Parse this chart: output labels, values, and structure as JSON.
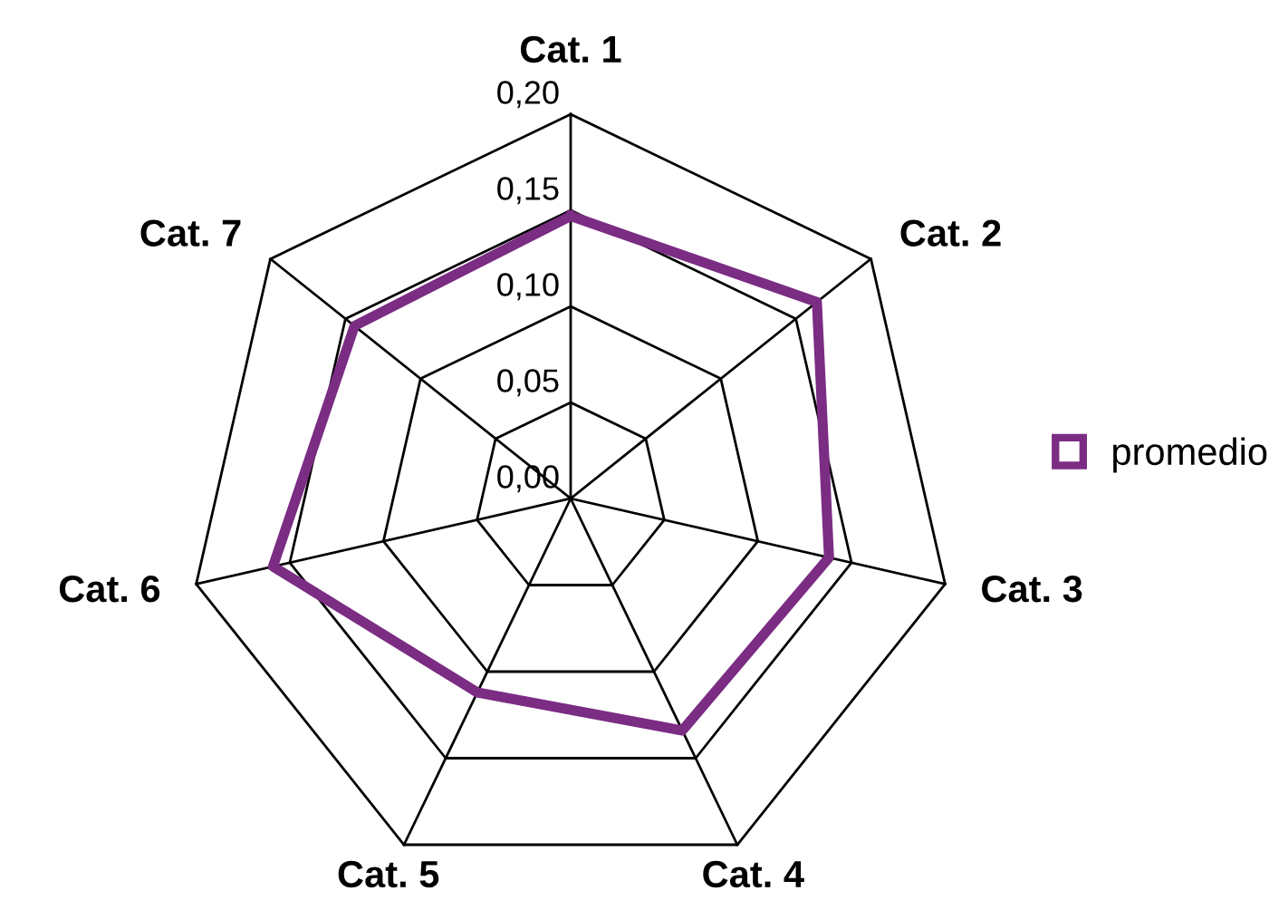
{
  "chart_data": {
    "type": "radar",
    "categories": [
      "Cat. 1",
      "Cat. 2",
      "Cat. 3",
      "Cat. 4",
      "Cat. 5",
      "Cat. 6",
      "Cat. 7"
    ],
    "series": [
      {
        "name": "promedio",
        "color": "#7b2c83",
        "values": [
          0.147,
          0.164,
          0.138,
          0.134,
          0.112,
          0.159,
          0.144
        ]
      }
    ],
    "ylim": [
      0,
      0.2
    ],
    "yticks": [
      {
        "value": 0,
        "label": "0,00"
      },
      {
        "value": 0.05,
        "label": "0,05"
      },
      {
        "value": 0.1,
        "label": "0,10"
      },
      {
        "value": 0.15,
        "label": "0,15"
      },
      {
        "value": 0.2,
        "label": "0,20"
      }
    ],
    "grid": true,
    "legend": "right"
  }
}
